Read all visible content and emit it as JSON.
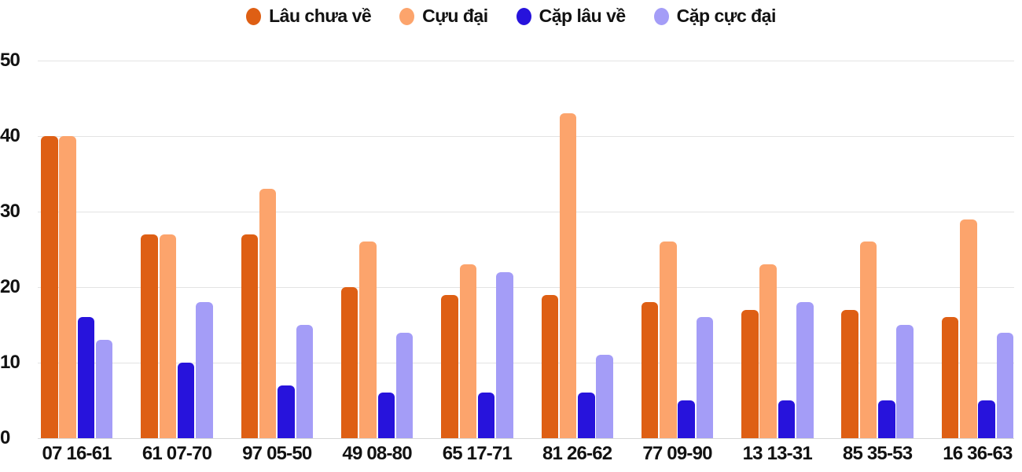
{
  "chart_data": {
    "type": "bar",
    "title": "",
    "xlabel": "",
    "ylabel": "",
    "categories": [
      "07 16-61",
      "61 07-70",
      "97 05-50",
      "49 08-80",
      "65 17-71",
      "81 26-62",
      "77 09-90",
      "13 13-31",
      "85 35-53",
      "16 36-63"
    ],
    "series": [
      {
        "name": "Lâu chưa về",
        "color": "#DE5F14",
        "values": [
          40,
          27,
          27,
          20,
          19,
          19,
          18,
          17,
          17,
          16
        ]
      },
      {
        "name": "Cựu đại",
        "color": "#FCA46C",
        "values": [
          40,
          27,
          33,
          26,
          23,
          43,
          26,
          23,
          26,
          29
        ]
      },
      {
        "name": "Cặp lâu về",
        "color": "#2713DC",
        "values": [
          16,
          10,
          7,
          6,
          6,
          6,
          5,
          5,
          5,
          5
        ]
      },
      {
        "name": "Cặp cực đại",
        "color": "#A49DF7",
        "values": [
          13,
          18,
          15,
          14,
          22,
          11,
          16,
          18,
          15,
          14
        ]
      }
    ],
    "ylim": [
      0,
      50
    ],
    "yticks": [
      0,
      10,
      20,
      30,
      40,
      50
    ],
    "grid": true,
    "legend_position": "top",
    "colors": {
      "grid": "#e3e3e3",
      "baseline": "#d7d7d7",
      "text": "#121212",
      "background": "#ffffff"
    }
  }
}
